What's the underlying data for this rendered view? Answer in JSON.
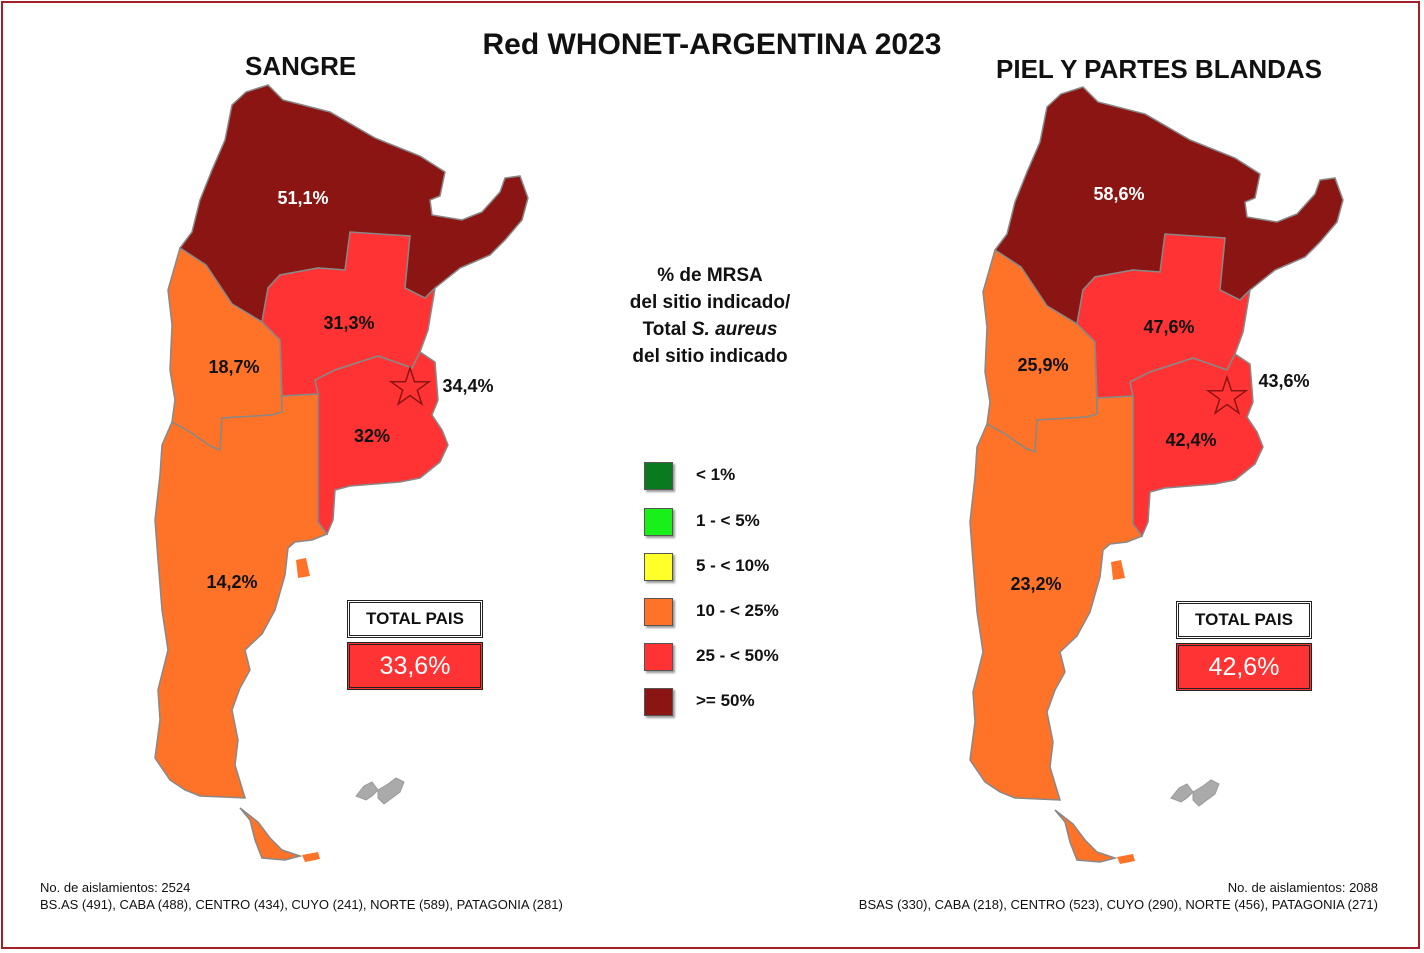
{
  "title": "Red WHONET-ARGENTINA 2023",
  "colors": {
    "lt1": "#0a7a1e",
    "lt5": "#19f019",
    "lt10": "#ffff2a",
    "lt25": "#ff7328",
    "lt50": "#ff3333",
    "ge50": "#8b1512"
  },
  "legend": {
    "title_line1": "% de MRSA",
    "title_line2": "del sitio indicado/",
    "title_line3_prefix": "Total ",
    "title_line3_italic": "S. aureus",
    "title_line4": "del sitio indicado",
    "items": [
      {
        "label": "< 1%",
        "color": "#0a7a1e"
      },
      {
        "label": "1 - < 5%",
        "color": "#19f019"
      },
      {
        "label": "5 - < 10%",
        "color": "#ffff2a"
      },
      {
        "label": "10 - < 25%",
        "color": "#ff7328"
      },
      {
        "label": "25 - < 50%",
        "color": "#ff3333"
      },
      {
        "label": ">= 50%",
        "color": "#8b1512"
      }
    ]
  },
  "maps": [
    {
      "title": "SANGRE",
      "regions": {
        "norte": "51,1%",
        "centro": "31,3%",
        "cuyo": "18,7%",
        "caba": "34,4%",
        "bsas": "32%",
        "patagonia": "14,2%"
      },
      "total_label": "TOTAL PAIS",
      "total_value": "33,6%",
      "footnote_line1": "No. de aislamientos: 2524",
      "footnote_line2": "BS.AS (491), CABA (488), CENTRO (434), CUYO (241), NORTE (589), PATAGONIA (281)"
    },
    {
      "title": "PIEL Y PARTES BLANDAS",
      "regions": {
        "norte": "58,6%",
        "centro": "47,6%",
        "cuyo": "25,9%",
        "caba": "43,6%",
        "bsas": "42,4%",
        "patagonia": "23,2%"
      },
      "total_label": "TOTAL PAIS",
      "total_value": "42,6%",
      "footnote_line1": "No. de aislamientos: 2088",
      "footnote_line2": "BSAS (330), CABA (218), CENTRO (523), CUYO (290), NORTE (456), PATAGONIA (271)"
    }
  ]
}
